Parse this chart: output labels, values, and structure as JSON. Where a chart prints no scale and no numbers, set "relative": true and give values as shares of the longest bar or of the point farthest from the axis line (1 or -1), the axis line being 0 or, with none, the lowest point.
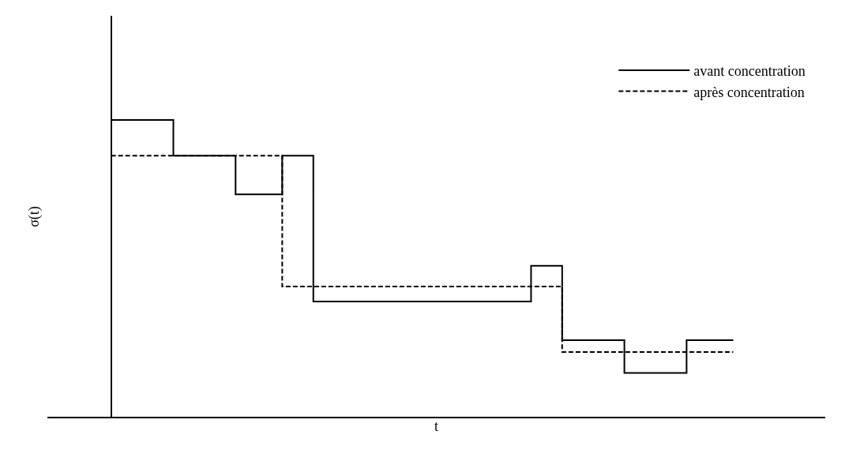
{
  "chart_data": {
    "type": "step",
    "relative": true,
    "xlabel": "t",
    "ylabel": "σ(t)",
    "categories": [
      null,
      null,
      null,
      null,
      null,
      null,
      null,
      null,
      null,
      null,
      null,
      null,
      null,
      null,
      null,
      null,
      null,
      null,
      null,
      null,
      null,
      null,
      null,
      null,
      null,
      null,
      null,
      null,
      null,
      null,
      null,
      null,
      null,
      null,
      null,
      null,
      null,
      null,
      null,
      null,
      null
    ],
    "series": [
      {
        "name": "avant concentration",
        "color": "#000000",
        "line_style": "solid",
        "values": [
          1.0,
          1.0,
          1.0,
          1.0,
          0.88,
          0.88,
          0.88,
          0.88,
          0.75,
          0.75,
          0.75,
          0.88,
          0.88,
          0.39,
          0.39,
          0.39,
          0.39,
          0.39,
          0.39,
          0.39,
          0.39,
          0.39,
          0.39,
          0.39,
          0.39,
          0.39,
          0.39,
          0.51,
          0.51,
          0.26,
          0.26,
          0.26,
          0.26,
          0.15,
          0.15,
          0.15,
          0.15,
          0.26,
          0.26,
          0.26,
          0.26
        ]
      },
      {
        "name": "après concentration",
        "color": "#000000",
        "line_style": "dashed",
        "values": [
          0.88,
          0.88,
          0.88,
          0.88,
          0.88,
          0.88,
          0.88,
          0.88,
          0.88,
          0.88,
          0.88,
          0.44,
          0.44,
          0.44,
          0.44,
          0.44,
          0.44,
          0.44,
          0.44,
          0.44,
          0.44,
          0.44,
          0.44,
          0.44,
          0.44,
          0.44,
          0.44,
          0.44,
          0.44,
          0.22,
          0.22,
          0.22,
          0.22,
          0.22,
          0.22,
          0.22,
          0.22,
          0.22,
          0.22,
          0.22,
          0.22
        ]
      }
    ],
    "legend": "top right",
    "marker": "none"
  }
}
